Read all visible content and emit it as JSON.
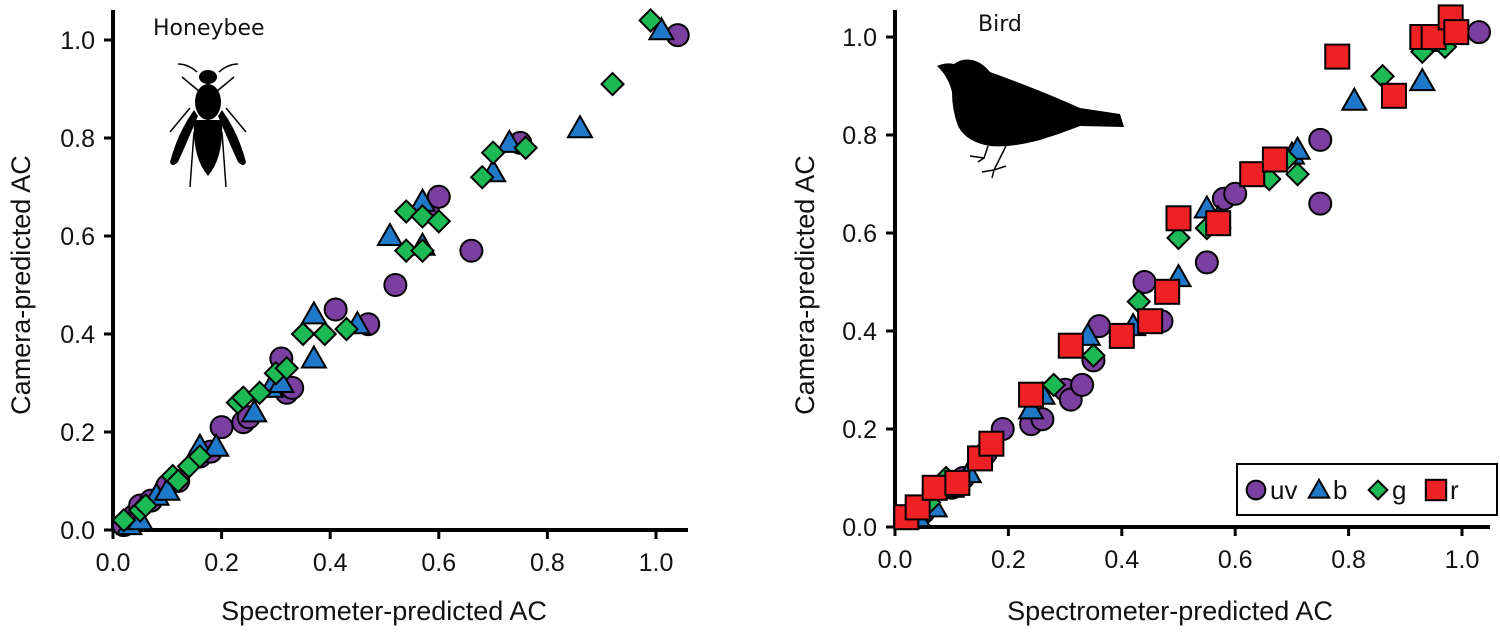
{
  "colors": {
    "uv": "#7b3fa0",
    "b": "#1f78c8",
    "g": "#1db954",
    "r": "#ee2224",
    "axis": "#000000"
  },
  "chart_data": [
    {
      "type": "scatter",
      "title": "Honeybee",
      "icon": "honeybee-silhouette-icon",
      "xlabel": "Spectrometer-predicted AC",
      "ylabel": "Camera-predicted AC",
      "xlim": [
        0,
        1.05
      ],
      "ylim": [
        0,
        1.05
      ],
      "xticks": [
        "0.0",
        "0.2",
        "0.4",
        "0.6",
        "0.8",
        "1.0"
      ],
      "yticks": [
        "0.0",
        "0.2",
        "0.4",
        "0.6",
        "0.8",
        "1.0"
      ],
      "grid": false,
      "legend": null,
      "series": [
        {
          "name": "uv",
          "marker": "circle",
          "points": [
            [
              0.02,
              0.01
            ],
            [
              0.04,
              0.03
            ],
            [
              0.05,
              0.05
            ],
            [
              0.07,
              0.06
            ],
            [
              0.1,
              0.09
            ],
            [
              0.12,
              0.1
            ],
            [
              0.16,
              0.15
            ],
            [
              0.18,
              0.16
            ],
            [
              0.2,
              0.21
            ],
            [
              0.24,
              0.22
            ],
            [
              0.25,
              0.23
            ],
            [
              0.31,
              0.35
            ],
            [
              0.32,
              0.28
            ],
            [
              0.33,
              0.29
            ],
            [
              0.41,
              0.45
            ],
            [
              0.47,
              0.42
            ],
            [
              0.52,
              0.5
            ],
            [
              0.58,
              0.65
            ],
            [
              0.6,
              0.68
            ],
            [
              0.66,
              0.57
            ],
            [
              0.75,
              0.79
            ],
            [
              1.04,
              1.01
            ]
          ]
        },
        {
          "name": "b",
          "marker": "triangle",
          "points": [
            [
              0.03,
              0.01
            ],
            [
              0.05,
              0.02
            ],
            [
              0.08,
              0.07
            ],
            [
              0.1,
              0.08
            ],
            [
              0.16,
              0.17
            ],
            [
              0.19,
              0.17
            ],
            [
              0.26,
              0.24
            ],
            [
              0.29,
              0.29
            ],
            [
              0.31,
              0.3
            ],
            [
              0.37,
              0.35
            ],
            [
              0.37,
              0.44
            ],
            [
              0.45,
              0.42
            ],
            [
              0.51,
              0.6
            ],
            [
              0.57,
              0.58
            ],
            [
              0.57,
              0.67
            ],
            [
              0.7,
              0.73
            ],
            [
              0.73,
              0.79
            ],
            [
              0.86,
              0.82
            ],
            [
              1.01,
              1.02
            ]
          ]
        },
        {
          "name": "g",
          "marker": "diamond",
          "points": [
            [
              0.02,
              0.02
            ],
            [
              0.05,
              0.04
            ],
            [
              0.06,
              0.05
            ],
            [
              0.11,
              0.11
            ],
            [
              0.12,
              0.1
            ],
            [
              0.14,
              0.13
            ],
            [
              0.16,
              0.15
            ],
            [
              0.23,
              0.26
            ],
            [
              0.24,
              0.27
            ],
            [
              0.27,
              0.28
            ],
            [
              0.3,
              0.32
            ],
            [
              0.32,
              0.33
            ],
            [
              0.35,
              0.4
            ],
            [
              0.39,
              0.4
            ],
            [
              0.43,
              0.41
            ],
            [
              0.54,
              0.65
            ],
            [
              0.54,
              0.57
            ],
            [
              0.57,
              0.64
            ],
            [
              0.57,
              0.57
            ],
            [
              0.6,
              0.63
            ],
            [
              0.68,
              0.72
            ],
            [
              0.7,
              0.77
            ],
            [
              0.76,
              0.78
            ],
            [
              0.92,
              0.91
            ],
            [
              0.99,
              1.04
            ]
          ]
        }
      ]
    },
    {
      "type": "scatter",
      "title": "Bird",
      "icon": "bird-silhouette-icon",
      "xlabel": "Spectrometer-predicted AC",
      "ylabel": "Camera-predicted AC",
      "xlim": [
        0,
        1.05
      ],
      "ylim": [
        0,
        1.05
      ],
      "xticks": [
        "0.0",
        "0.2",
        "0.4",
        "0.6",
        "0.8",
        "1.0"
      ],
      "yticks": [
        "0.0",
        "0.2",
        "0.4",
        "0.6",
        "0.8",
        "1.0"
      ],
      "grid": false,
      "legend": {
        "position": "bottom-right",
        "orientation": "horizontal",
        "entries": [
          "uv",
          "b",
          "g",
          "r"
        ]
      },
      "series": [
        {
          "name": "uv",
          "marker": "circle",
          "points": [
            [
              0.03,
              0.02
            ],
            [
              0.05,
              0.03
            ],
            [
              0.1,
              0.08
            ],
            [
              0.12,
              0.1
            ],
            [
              0.16,
              0.15
            ],
            [
              0.19,
              0.2
            ],
            [
              0.24,
              0.21
            ],
            [
              0.26,
              0.22
            ],
            [
              0.3,
              0.28
            ],
            [
              0.31,
              0.26
            ],
            [
              0.33,
              0.29
            ],
            [
              0.35,
              0.34
            ],
            [
              0.36,
              0.41
            ],
            [
              0.44,
              0.5
            ],
            [
              0.47,
              0.42
            ],
            [
              0.55,
              0.54
            ],
            [
              0.58,
              0.67
            ],
            [
              0.6,
              0.68
            ],
            [
              0.75,
              0.79
            ],
            [
              0.75,
              0.66
            ],
            [
              1.03,
              1.01
            ]
          ]
        },
        {
          "name": "b",
          "marker": "triangle",
          "points": [
            [
              0.04,
              0.02
            ],
            [
              0.07,
              0.04
            ],
            [
              0.1,
              0.08
            ],
            [
              0.13,
              0.11
            ],
            [
              0.24,
              0.24
            ],
            [
              0.26,
              0.27
            ],
            [
              0.34,
              0.39
            ],
            [
              0.42,
              0.41
            ],
            [
              0.5,
              0.51
            ],
            [
              0.55,
              0.65
            ],
            [
              0.57,
              0.63
            ],
            [
              0.7,
              0.76
            ],
            [
              0.71,
              0.77
            ],
            [
              0.81,
              0.87
            ],
            [
              0.93,
              0.91
            ],
            [
              0.96,
              0.99
            ]
          ]
        },
        {
          "name": "g",
          "marker": "diamond",
          "points": [
            [
              0.06,
              0.05
            ],
            [
              0.09,
              0.1
            ],
            [
              0.28,
              0.29
            ],
            [
              0.35,
              0.35
            ],
            [
              0.43,
              0.46
            ],
            [
              0.5,
              0.59
            ],
            [
              0.55,
              0.61
            ],
            [
              0.66,
              0.71
            ],
            [
              0.69,
              0.75
            ],
            [
              0.71,
              0.72
            ],
            [
              0.86,
              0.92
            ],
            [
              0.93,
              0.97
            ],
            [
              0.97,
              0.98
            ]
          ]
        },
        {
          "name": "r",
          "marker": "square",
          "points": [
            [
              0.02,
              0.02
            ],
            [
              0.04,
              0.04
            ],
            [
              0.07,
              0.08
            ],
            [
              0.11,
              0.09
            ],
            [
              0.15,
              0.14
            ],
            [
              0.17,
              0.17
            ],
            [
              0.24,
              0.27
            ],
            [
              0.31,
              0.37
            ],
            [
              0.4,
              0.39
            ],
            [
              0.45,
              0.42
            ],
            [
              0.48,
              0.48
            ],
            [
              0.5,
              0.63
            ],
            [
              0.57,
              0.62
            ],
            [
              0.63,
              0.72
            ],
            [
              0.67,
              0.75
            ],
            [
              0.78,
              0.96
            ],
            [
              0.88,
              0.88
            ],
            [
              0.93,
              1.0
            ],
            [
              0.95,
              1.0
            ],
            [
              0.98,
              1.04
            ],
            [
              0.99,
              1.01
            ]
          ]
        }
      ]
    }
  ]
}
